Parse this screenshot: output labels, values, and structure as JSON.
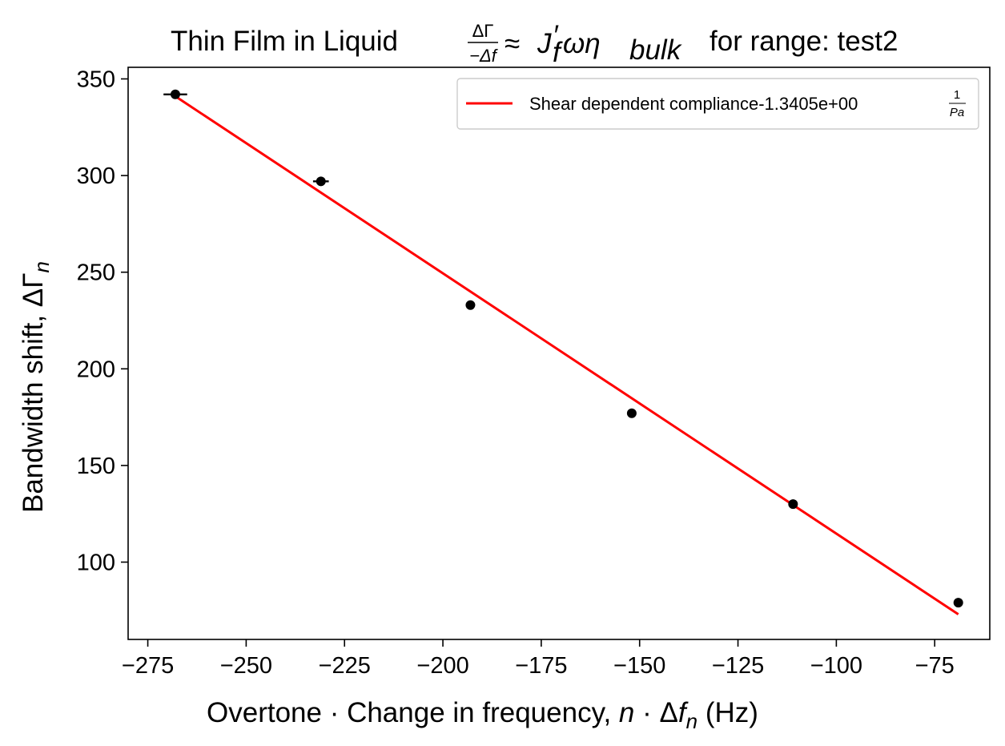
{
  "chart_data": {
    "type": "scatter",
    "title": {
      "prefix": "Thin Film in Liquid ",
      "frac_num": "ΔΓ",
      "frac_den": "−Δf",
      "rhs_approx": "≈",
      "rhs_J": "J",
      "rhs_prime": "′",
      "rhs_sub_f": "f",
      "rhs_omega_eta": "ωη",
      "rhs_sub_bulk": "bulk",
      "suffix": "for range: test2"
    },
    "xlabel": {
      "text": "Overtone · Change in frequency, ",
      "n": "n",
      "dot": " · ",
      "delta": "Δ",
      "f": "f",
      "sub": "n",
      "unit": " (Hz)"
    },
    "ylabel": {
      "text": "Bandwidth shift, ",
      "symbol": "ΔΓ",
      "sub": "n"
    },
    "xlim": [
      -280,
      -61
    ],
    "ylim": [
      60,
      356
    ],
    "xticks": [
      -275,
      -250,
      -225,
      -200,
      -175,
      -150,
      -125,
      -100,
      -75
    ],
    "xtick_labels": [
      "−275",
      "−250",
      "−225",
      "−200",
      "−175",
      "−150",
      "−125",
      "−100",
      "−75"
    ],
    "yticks": [
      100,
      150,
      200,
      250,
      300,
      350
    ],
    "ytick_labels": [
      "100",
      "150",
      "200",
      "250",
      "300",
      "350"
    ],
    "grid": false,
    "legend_position": "top-right",
    "series": [
      {
        "kind": "points",
        "color": "#000000",
        "x": [
          -268,
          -231,
          -193,
          -152,
          -111,
          -69
        ],
        "y": [
          342,
          297,
          233,
          177,
          130,
          79
        ],
        "xerr": [
          3,
          2,
          0,
          0,
          0,
          0
        ]
      },
      {
        "kind": "line",
        "name": "Shear dependent compliance-1.3405e+00",
        "unit_num": "1",
        "unit_den": "Pa",
        "color": "#ff0000",
        "x": [
          -268,
          -69
        ],
        "y": [
          341,
          73
        ]
      }
    ]
  }
}
